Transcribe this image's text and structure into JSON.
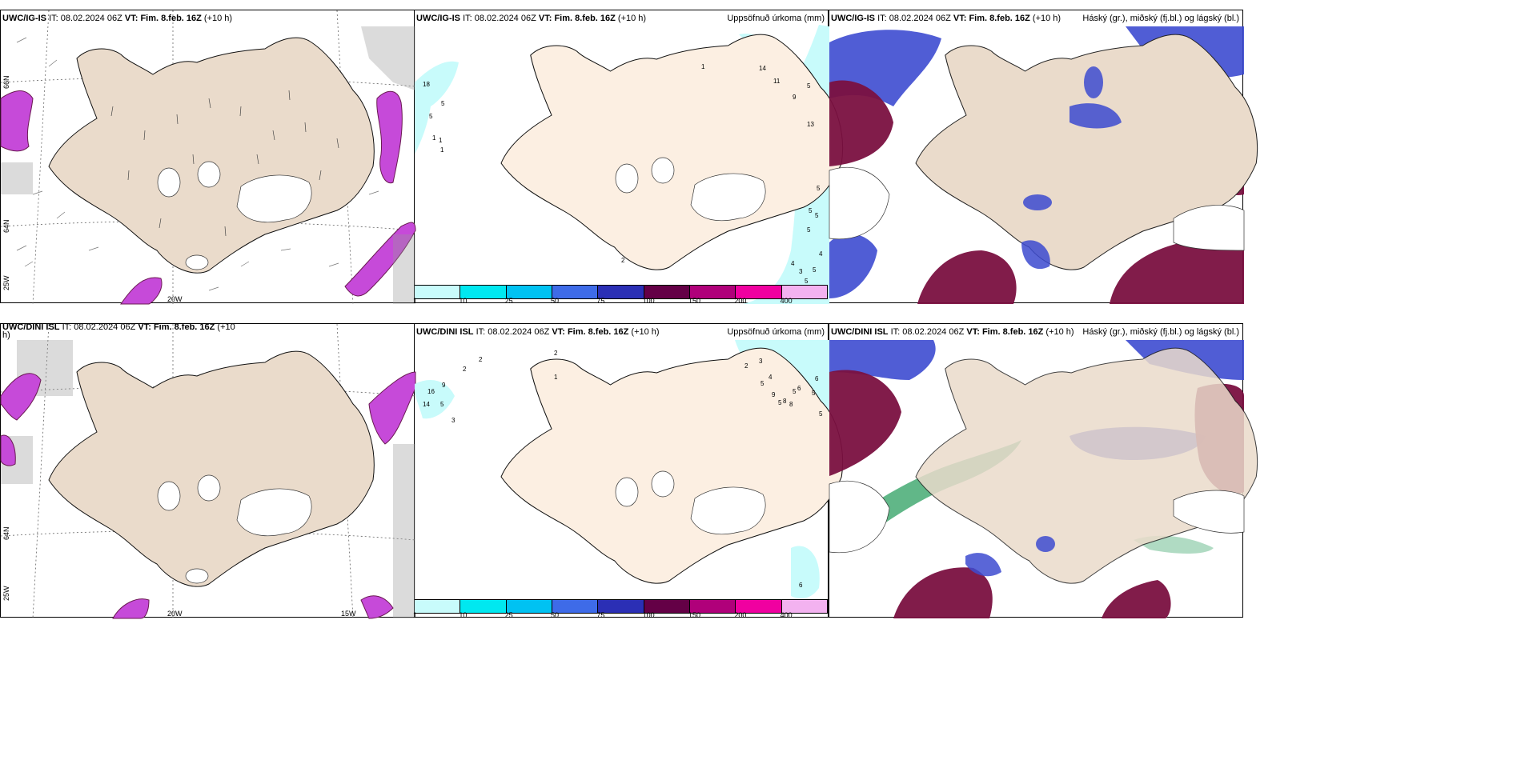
{
  "panels": [
    {
      "model": "UWC/IG-IS",
      "it_label": "IT:",
      "it": "08.02.2024 06Z",
      "vt_label": "VT: Fim. 8.feb. 16Z",
      "lead": "(+10 h)",
      "product": ""
    },
    {
      "model": "UWC/IG-IS",
      "it_label": "IT:",
      "it": "08.02.2024 06Z",
      "vt_label": "VT: Fim. 8.feb. 16Z",
      "lead": "(+10 h)",
      "product": "Uppsöfnuð úrkoma (mm)"
    },
    {
      "model": "UWC/IG-IS",
      "it_label": "IT:",
      "it": "08.02.2024 06Z",
      "vt_label": "VT: Fim. 8.feb. 16Z",
      "lead": "(+10 h)",
      "product": "Háský (gr.), miðský (fj.bl.) og lágský (bl.)"
    },
    {
      "model": "UWC/DINI ISL",
      "it_label": "IT:",
      "it": "08.02.2024 06Z",
      "vt_label": "VT: Fim. 8.feb. 16Z",
      "lead": "(+10",
      "lead2": "h)",
      "product": ""
    },
    {
      "model": "UWC/DINI ISL",
      "it_label": "IT:",
      "it": "08.02.2024 06Z",
      "vt_label": "VT: Fim. 8.feb. 16Z",
      "lead": "(+10 h)",
      "product": "Uppsöfnuð úrkoma (mm)"
    },
    {
      "model": "UWC/DINI ISL",
      "it_label": "IT:",
      "it": "08.02.2024 06Z",
      "vt_label": "VT: Fim. 8.feb. 16Z",
      "lead": "(+10 h)",
      "product": "Háský (gr.), miðský (fj.bl.) og lágský (bl.)"
    }
  ],
  "axis_labels": {
    "lat66": "66N",
    "lat64": "64N",
    "lon25": "25W",
    "lon20": "20W",
    "lon15": "15W"
  },
  "precip_legend": {
    "ticks": [
      "1",
      "10",
      "25",
      "50",
      "75",
      "100",
      "150",
      "200",
      "400"
    ],
    "colors": [
      "#c8fbfb",
      "#00e8f0",
      "#00c2f2",
      "#3e6be8",
      "#2b2fb5",
      "#640046",
      "#b0007a",
      "#f000a0",
      "#f3b2f0"
    ]
  },
  "precip_values_top": [
    "18",
    "5",
    "5",
    "1",
    "1",
    "1",
    "14",
    "11",
    "9",
    "5",
    "13",
    "5",
    "5",
    "5",
    "5",
    "4",
    "4",
    "3",
    "5",
    "5",
    "2",
    "1"
  ],
  "precip_values_bottom": [
    "2",
    "2",
    "2",
    "1",
    "9",
    "16",
    "5",
    "14",
    "3",
    "2",
    "3",
    "4",
    "5",
    "9",
    "6",
    "6",
    "5",
    "5",
    "8",
    "8",
    "5",
    "6",
    "5"
  ],
  "colors": {
    "land": "#f5e9dc",
    "land_wind": "#eadbcb",
    "ice": "#ffffff",
    "purple": "#c64ad9",
    "darkpurple": "#6a1a52",
    "cloud_high": "#7a1040",
    "cloud_mid": "#3d4bd0",
    "cloud_low": "#3aa56a"
  }
}
